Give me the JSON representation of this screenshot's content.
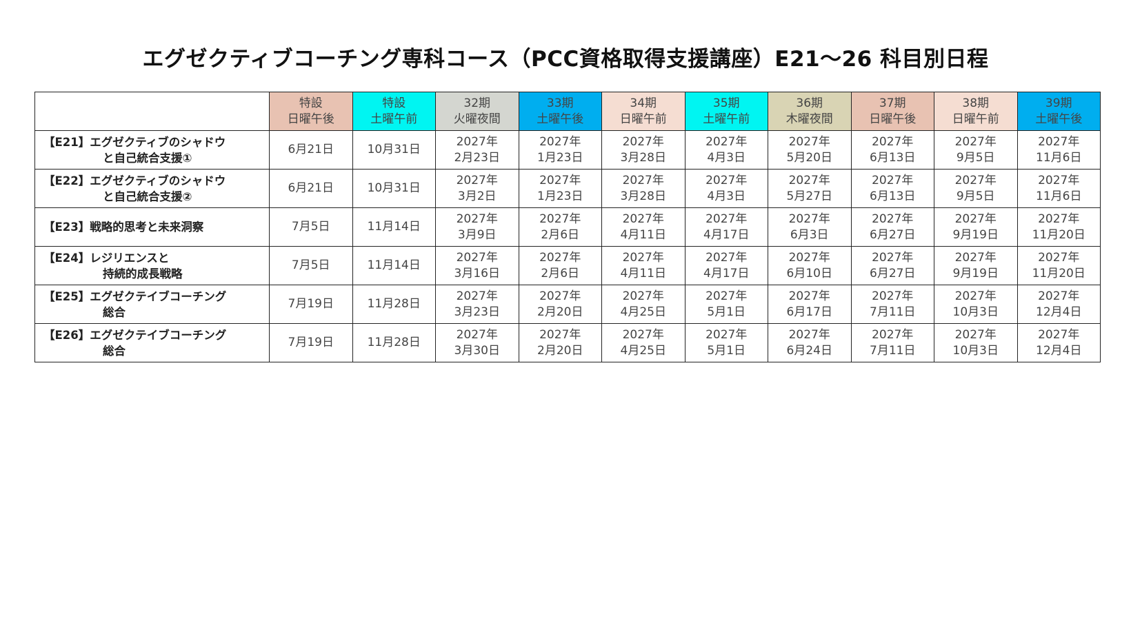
{
  "title": "エグゼクティブコーチング専科コース（PCC資格取得支援講座）E21〜26 科目別日程",
  "columns": [
    {
      "line1": "特設",
      "line2": "日曜午後",
      "color": "#E8C2B2"
    },
    {
      "line1": "特設",
      "line2": "土曜午前",
      "color": "#00F5F2"
    },
    {
      "line1": "32期",
      "line2": "火曜夜間",
      "color": "#D4D6D0"
    },
    {
      "line1": "33期",
      "line2": "土曜午後",
      "color": "#00AEEF"
    },
    {
      "line1": "34期",
      "line2": "日曜午前",
      "color": "#F5DDD2"
    },
    {
      "line1": "35期",
      "line2": "土曜午前",
      "color": "#00F5F2"
    },
    {
      "line1": "36期",
      "line2": "木曜夜間",
      "color": "#D9D4B4"
    },
    {
      "line1": "37期",
      "line2": "日曜午後",
      "color": "#E8C2B2"
    },
    {
      "line1": "38期",
      "line2": "日曜午前",
      "color": "#F5DDD2"
    },
    {
      "line1": "39期",
      "line2": "土曜午後",
      "color": "#00AEEF"
    }
  ],
  "rows": [
    {
      "subject_line1": "【E21】エグゼクティブのシャドウ",
      "subject_line2": "と自己統合支援①",
      "cells": [
        {
          "l1": "6月21日",
          "l2": ""
        },
        {
          "l1": "10月31日",
          "l2": ""
        },
        {
          "l1": "2027年",
          "l2": "2月23日"
        },
        {
          "l1": "2027年",
          "l2": "1月23日"
        },
        {
          "l1": "2027年",
          "l2": "3月28日"
        },
        {
          "l1": "2027年",
          "l2": "4月3日"
        },
        {
          "l1": "2027年",
          "l2": "5月20日"
        },
        {
          "l1": "2027年",
          "l2": "6月13日"
        },
        {
          "l1": "2027年",
          "l2": "9月5日"
        },
        {
          "l1": "2027年",
          "l2": "11月6日"
        }
      ]
    },
    {
      "subject_line1": "【E22】エグゼクティブのシャドウ",
      "subject_line2": "と自己統合支援②",
      "cells": [
        {
          "l1": "6月21日",
          "l2": ""
        },
        {
          "l1": "10月31日",
          "l2": ""
        },
        {
          "l1": "2027年",
          "l2": "3月2日"
        },
        {
          "l1": "2027年",
          "l2": "1月23日"
        },
        {
          "l1": "2027年",
          "l2": "3月28日"
        },
        {
          "l1": "2027年",
          "l2": "4月3日"
        },
        {
          "l1": "2027年",
          "l2": "5月27日"
        },
        {
          "l1": "2027年",
          "l2": "6月13日"
        },
        {
          "l1": "2027年",
          "l2": "9月5日"
        },
        {
          "l1": "2027年",
          "l2": "11月6日"
        }
      ]
    },
    {
      "subject_line1": "【E23】戦略的思考と未来洞察",
      "subject_line2": "",
      "cells": [
        {
          "l1": "7月5日",
          "l2": ""
        },
        {
          "l1": "11月14日",
          "l2": ""
        },
        {
          "l1": "2027年",
          "l2": "3月9日"
        },
        {
          "l1": "2027年",
          "l2": "2月6日"
        },
        {
          "l1": "2027年",
          "l2": "4月11日"
        },
        {
          "l1": "2027年",
          "l2": "4月17日"
        },
        {
          "l1": "2027年",
          "l2": "6月3日"
        },
        {
          "l1": "2027年",
          "l2": "6月27日"
        },
        {
          "l1": "2027年",
          "l2": "9月19日"
        },
        {
          "l1": "2027年",
          "l2": "11月20日"
        }
      ]
    },
    {
      "subject_line1": "【E24】レジリエンスと",
      "subject_line2": "持続的成長戦略",
      "cells": [
        {
          "l1": "7月5日",
          "l2": ""
        },
        {
          "l1": "11月14日",
          "l2": ""
        },
        {
          "l1": "2027年",
          "l2": "3月16日"
        },
        {
          "l1": "2027年",
          "l2": "2月6日"
        },
        {
          "l1": "2027年",
          "l2": "4月11日"
        },
        {
          "l1": "2027年",
          "l2": "4月17日"
        },
        {
          "l1": "2027年",
          "l2": "6月10日"
        },
        {
          "l1": "2027年",
          "l2": "6月27日"
        },
        {
          "l1": "2027年",
          "l2": "9月19日"
        },
        {
          "l1": "2027年",
          "l2": "11月20日"
        }
      ]
    },
    {
      "subject_line1": "【E25】エグゼクテイブコーチング",
      "subject_line2": "総合",
      "cells": [
        {
          "l1": "7月19日",
          "l2": ""
        },
        {
          "l1": "11月28日",
          "l2": ""
        },
        {
          "l1": "2027年",
          "l2": "3月23日"
        },
        {
          "l1": "2027年",
          "l2": "2月20日"
        },
        {
          "l1": "2027年",
          "l2": "4月25日"
        },
        {
          "l1": "2027年",
          "l2": "5月1日"
        },
        {
          "l1": "2027年",
          "l2": "6月17日"
        },
        {
          "l1": "2027年",
          "l2": "7月11日"
        },
        {
          "l1": "2027年",
          "l2": "10月3日"
        },
        {
          "l1": "2027年",
          "l2": "12月4日"
        }
      ]
    },
    {
      "subject_line1": "【E26】エグゼクテイブコーチング",
      "subject_line2": "総合",
      "cells": [
        {
          "l1": "7月19日",
          "l2": ""
        },
        {
          "l1": "11月28日",
          "l2": ""
        },
        {
          "l1": "2027年",
          "l2": "3月30日"
        },
        {
          "l1": "2027年",
          "l2": "2月20日"
        },
        {
          "l1": "2027年",
          "l2": "4月25日"
        },
        {
          "l1": "2027年",
          "l2": "5月1日"
        },
        {
          "l1": "2027年",
          "l2": "6月24日"
        },
        {
          "l1": "2027年",
          "l2": "7月11日"
        },
        {
          "l1": "2027年",
          "l2": "10月3日"
        },
        {
          "l1": "2027年",
          "l2": "12月4日"
        }
      ]
    }
  ]
}
